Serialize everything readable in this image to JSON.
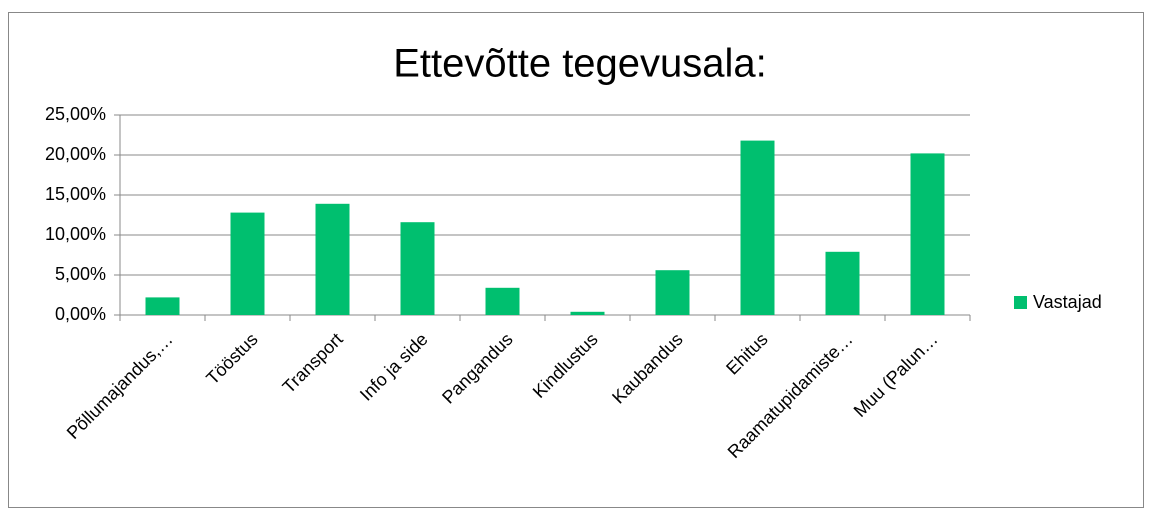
{
  "chart_data": {
    "type": "bar",
    "title": "Ettevõtte tegevusala:",
    "categories": [
      "Põllumajandus,…",
      "Tööstus",
      "Transport",
      "Info ja side",
      "Pangandus",
      "Kindlustus",
      "Kaubandus",
      "Ehitus",
      "Raamatupidamiste…",
      "Muu (Palun…"
    ],
    "series": [
      {
        "name": "Vastajad",
        "color": "#00bf6f",
        "values": [
          2.2,
          12.8,
          13.9,
          11.6,
          3.4,
          0.4,
          5.6,
          21.8,
          7.9,
          20.2
        ]
      }
    ],
    "ylim": [
      0,
      25
    ],
    "yticks": [
      {
        "value": 0,
        "label": "0,00%"
      },
      {
        "value": 5,
        "label": "5,00%"
      },
      {
        "value": 10,
        "label": "10,00%"
      },
      {
        "value": 15,
        "label": "15,00%"
      },
      {
        "value": 20,
        "label": "20,00%"
      },
      {
        "value": 25,
        "label": "25,00%"
      }
    ],
    "grid": true,
    "legend": "right"
  }
}
